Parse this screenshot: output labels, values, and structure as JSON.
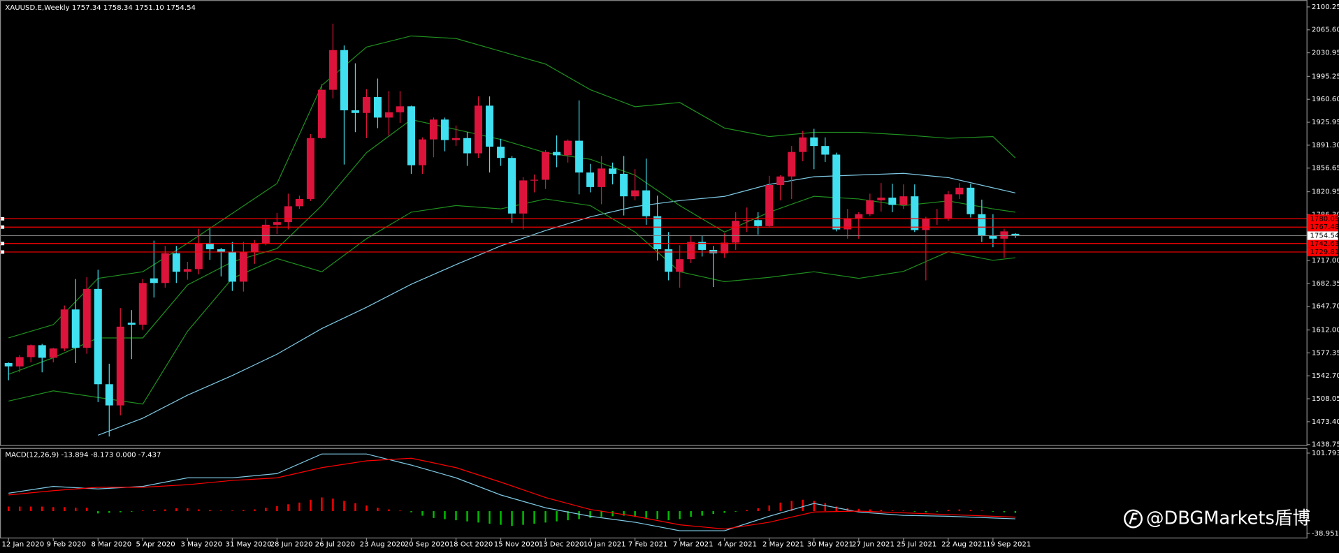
{
  "chart_data": {
    "type": "candlestick",
    "title": "XAUUSD.E,Weekly  1757.34 1758.34 1751.10 1754.54",
    "up_color": "#dc143c",
    "down_color": "#40e0f0",
    "categories": [
      "12 Jan 2020",
      null,
      null,
      null,
      "9 Feb 2020",
      null,
      null,
      null,
      "8 Mar 2020",
      null,
      null,
      null,
      "5 Apr 2020",
      null,
      null,
      null,
      "3 May 2020",
      null,
      null,
      null,
      "31 May 2020",
      null,
      null,
      null,
      "28 Jun 2020",
      null,
      null,
      null,
      "26 Jul 2020",
      null,
      null,
      null,
      "23 Aug 2020",
      null,
      null,
      null,
      "20 Sep 2020",
      null,
      null,
      null,
      "18 Oct 2020",
      null,
      null,
      null,
      "15 Nov 2020",
      null,
      null,
      null,
      "13 Dec 2020",
      null,
      null,
      null,
      "10 Jan 2021",
      null,
      null,
      null,
      "7 Feb 2021",
      null,
      null,
      null,
      "7 Mar 2021",
      null,
      null,
      null,
      "4 Apr 2021",
      null,
      null,
      null,
      "2 May 2021",
      null,
      null,
      null,
      "30 May 2021",
      null,
      null,
      null,
      "27 Jun 2021",
      null,
      null,
      null,
      "25 Jul 2021",
      null,
      null,
      null,
      "22 Aug 2021",
      null,
      null,
      null,
      "19 Sep 2021",
      null,
      null
    ],
    "open": [
      1562,
      1557,
      1571,
      1589,
      1570,
      1584,
      1643,
      1585,
      1674,
      1530,
      1498,
      1623,
      1620,
      1690,
      1683,
      1728,
      1700,
      1704,
      1743,
      1734,
      1730,
      1685,
      1730,
      1743,
      1771,
      1775,
      1799,
      1810,
      1902,
      1975,
      2035,
      1944,
      1940,
      1964,
      1933,
      1941,
      1950,
      1861,
      1900,
      1930,
      1899,
      1902,
      1879,
      1951,
      1889,
      1872,
      1788,
      1838,
      1839,
      1881,
      1876,
      1898,
      1850,
      1828,
      1856,
      1848,
      1814,
      1823,
      1784,
      1734,
      1700,
      1719,
      1745,
      1733,
      1728,
      1744,
      1777,
      1778,
      1769,
      1831,
      1844,
      1881,
      1903,
      1890,
      1877,
      1764,
      1781,
      1787,
      1808,
      1812,
      1801,
      1814,
      1763,
      1780,
      1781,
      1817,
      1827,
      1787,
      1754,
      1750,
      1757.34
    ],
    "high": [
      1563,
      1574,
      1590,
      1591,
      1585,
      1649,
      1689,
      1692,
      1703,
      1561,
      1645,
      1642,
      1689,
      1747,
      1739,
      1739,
      1715,
      1765,
      1765,
      1736,
      1745,
      1745,
      1748,
      1779,
      1789,
      1818,
      1815,
      1908,
      1984,
      2075,
      2042,
      2015,
      1976,
      1992,
      1973,
      1973,
      1951,
      1903,
      1933,
      1933,
      1921,
      1911,
      1965,
      1965,
      1901,
      1875,
      1843,
      1847,
      1884,
      1906,
      1900,
      1959,
      1863,
      1875,
      1865,
      1875,
      1855,
      1871,
      1815,
      1760,
      1740,
      1755,
      1755,
      1739,
      1758,
      1790,
      1797,
      1790,
      1845,
      1846,
      1890,
      1913,
      1916,
      1903,
      1880,
      1795,
      1790,
      1818,
      1834,
      1833,
      1832,
      1832,
      1783,
      1795,
      1822,
      1834,
      1833,
      1809,
      1787,
      1765,
      1758.34
    ],
    "low": [
      1536,
      1548,
      1563,
      1548,
      1563,
      1580,
      1562,
      1576,
      1503,
      1451,
      1483,
      1568,
      1612,
      1661,
      1676,
      1683,
      1688,
      1696,
      1718,
      1693,
      1671,
      1670,
      1712,
      1740,
      1757,
      1764,
      1795,
      1807,
      1901,
      1962,
      1862,
      1911,
      1902,
      1917,
      1906,
      1925,
      1848,
      1848,
      1873,
      1882,
      1890,
      1860,
      1872,
      1850,
      1860,
      1774,
      1764,
      1820,
      1825,
      1858,
      1865,
      1817,
      1820,
      1802,
      1832,
      1785,
      1808,
      1771,
      1717,
      1687,
      1676,
      1713,
      1723,
      1677,
      1721,
      1733,
      1760,
      1756,
      1768,
      1808,
      1810,
      1867,
      1855,
      1866,
      1761,
      1750,
      1750,
      1784,
      1791,
      1790,
      1795,
      1760,
      1687,
      1771,
      1777,
      1810,
      1782,
      1745,
      1737,
      1721,
      1751.1
    ],
    "close": [
      1557,
      1571,
      1589,
      1570,
      1584,
      1643,
      1585,
      1674,
      1530,
      1498,
      1617,
      1620,
      1683,
      1683,
      1728,
      1700,
      1704,
      1743,
      1734,
      1730,
      1685,
      1730,
      1743,
      1771,
      1775,
      1799,
      1810,
      1902,
      1975,
      2035,
      1944,
      1940,
      1964,
      1933,
      1941,
      1950,
      1861,
      1900,
      1930,
      1899,
      1902,
      1879,
      1951,
      1889,
      1872,
      1788,
      1838,
      1839,
      1881,
      1876,
      1898,
      1850,
      1828,
      1856,
      1848,
      1814,
      1823,
      1784,
      1734,
      1700,
      1719,
      1745,
      1733,
      1728,
      1744,
      1777,
      1778,
      1769,
      1831,
      1844,
      1881,
      1903,
      1890,
      1877,
      1764,
      1781,
      1787,
      1808,
      1812,
      1801,
      1814,
      1763,
      1780,
      1781,
      1817,
      1827,
      1787,
      1754,
      1750,
      1761,
      1754.54
    ],
    "ylim": [
      1437.5,
      2110.6
    ],
    "yticks": [
      2100.25,
      {
        "value": 2065.6,
        "label": "2065.60"
      },
      2030.95,
      1995.25,
      {
        "value": 1960.6,
        "label": "1960.60"
      },
      1925.95,
      {
        "value": 1891.3,
        "label": "1891.30"
      },
      1856.65,
      1820.95,
      {
        "value": 1786.3,
        "label": "1786.30"
      },
      {
        "value": 1717,
        "label": "1717.00"
      },
      1682.35,
      {
        "value": 1647.7,
        "label": "1647.70"
      },
      {
        "value": 1612,
        "label": "1612.00"
      },
      1577.35,
      {
        "value": 1542.7,
        "label": "1542.70"
      },
      1508.05,
      {
        "value": 1473.4,
        "label": "1473.40"
      },
      1438.75
    ],
    "price_lines": {
      "color": "#ff0000",
      "values": [
        1780.05,
        1767.48,
        1742.63,
        1729.81
      ]
    },
    "current_price": 1754.54,
    "overlays": [
      {
        "color": "#7ec8e3",
        "x": [
          8,
          12,
          16,
          20,
          24,
          28,
          32,
          36,
          40,
          44,
          48,
          52,
          56,
          60,
          64,
          68,
          72,
          76,
          80,
          84,
          88,
          90
        ],
        "values": [
          1452.9,
          1478.7,
          1513.5,
          1543.2,
          1575.4,
          1614.1,
          1646.3,
          1681.1,
          1710.8,
          1739.1,
          1762.3,
          1783.0,
          1798.5,
          1807.5,
          1813.9,
          1832.0,
          1843.6,
          1846.2,
          1848.7,
          1842.3,
          1826.8,
          1819.1
        ]
      },
      {
        "color": "#1f8f1f",
        "x": [
          0,
          4,
          8,
          12,
          16,
          20,
          24,
          28,
          32,
          36,
          40,
          44,
          48,
          52,
          56,
          60,
          64,
          68,
          72,
          76,
          80,
          84,
          88,
          90
        ],
        "values": [
          1600,
          1620,
          1690,
          1700,
          1743.1,
          1788.2,
          1833.4,
          1981.6,
          2039.6,
          2056.4,
          2052.5,
          2033.2,
          2013.9,
          1975.2,
          1949.4,
          1955.8,
          1917.2,
          1904.3,
          1910.7,
          1910.7,
          1906.9,
          1901.7,
          1904.3,
          1872.0
        ]
      },
      {
        "color": "#1f8f1f",
        "x": [
          0,
          4,
          8,
          12,
          16,
          20,
          24,
          28,
          32,
          36,
          40,
          44,
          48,
          52,
          56,
          60,
          64,
          68,
          72,
          76,
          80,
          84,
          88,
          90
        ],
        "values": [
          1545,
          1570,
          1600,
          1600,
          1680,
          1715,
          1735,
          1800,
          1880,
          1930,
          1915,
          1900,
          1880,
          1870,
          1846,
          1800,
          1760,
          1790,
          1814,
          1810,
          1800,
          1807,
          1795,
          1790
        ]
      },
      {
        "color": "#1f8f1f",
        "x": [
          0,
          4,
          8,
          12,
          16,
          20,
          24,
          28,
          32,
          36,
          40,
          44,
          48,
          52,
          56,
          60,
          64,
          68,
          72,
          76,
          80,
          84,
          88,
          90
        ],
        "values": [
          1504.5,
          1520,
          1510,
          1500,
          1610,
          1690,
          1720,
          1700,
          1750,
          1790,
          1800,
          1795,
          1810,
          1800,
          1760,
          1700,
          1685,
          1691.5,
          1700,
          1690,
          1700.5,
          1730.2,
          1717.3,
          1721.1
        ]
      }
    ],
    "macd": {
      "title": "MACD(12,26,9) -13.894 -8.173 0.000 -7.437",
      "ylim": [
        -46.4,
        110.8
      ],
      "yticks": [
        101.793,
        -38.951
      ],
      "positive_color": "#ff0000",
      "negative_color": "#00c000",
      "histogram": [
        8,
        8,
        8,
        8,
        7,
        7,
        6,
        6,
        -4,
        -3,
        -2,
        -1,
        1,
        2,
        3,
        5,
        5,
        3,
        2,
        1,
        1,
        2,
        3,
        6,
        9,
        12,
        15,
        20,
        24,
        22,
        18,
        14,
        10,
        6,
        3,
        1,
        -2,
        -8,
        -12,
        -14,
        -16,
        -18,
        -20,
        -22,
        -24,
        -26,
        -24,
        -22,
        -20,
        -18,
        -16,
        -14,
        -12,
        -10,
        -9,
        -8,
        -10,
        -12,
        -14,
        -16,
        -14,
        -10,
        -8,
        -5,
        -3,
        -1,
        2,
        5,
        10,
        15,
        18,
        20,
        18,
        14,
        8,
        5,
        4,
        3,
        2,
        1,
        1,
        -1,
        -2,
        -1,
        2,
        3,
        2,
        1,
        -1,
        -2,
        -3
      ],
      "lines": [
        {
          "color": "#7ec8e3",
          "x": [
            0,
            4,
            8,
            12,
            16,
            20,
            24,
            28,
            32,
            36,
            40,
            44,
            48,
            52,
            56,
            60,
            64,
            68,
            72,
            76,
            80,
            84,
            88,
            90
          ],
          "values": [
            31.4,
            43.4,
            38.9,
            43.4,
            58.4,
            58.4,
            65.9,
            100.3,
            100.3,
            80.8,
            58.4,
            28.4,
            5.9,
            -9.0,
            -19.5,
            -34.4,
            -34.4,
            -9.0,
            13.5,
            -1.5,
            -7.5,
            -9.0,
            -12.0,
            -13.5
          ]
        },
        {
          "color": "#ff0000",
          "x": [
            0,
            4,
            8,
            12,
            16,
            20,
            24,
            28,
            32,
            36,
            40,
            44,
            48,
            52,
            56,
            60,
            64,
            68,
            72,
            76,
            80,
            84,
            88,
            90
          ],
          "values": [
            28.4,
            35.9,
            41.9,
            41.9,
            46.4,
            53.9,
            58.4,
            76.3,
            88.3,
            92.8,
            76.3,
            50.9,
            23.9,
            2.9,
            -9.0,
            -24.0,
            -31.4,
            -19.5,
            -1.5,
            0.0,
            -3.0,
            -6.0,
            -9.0,
            -10.5
          ]
        }
      ]
    },
    "watermark": "@DBGMarkets盾博"
  }
}
